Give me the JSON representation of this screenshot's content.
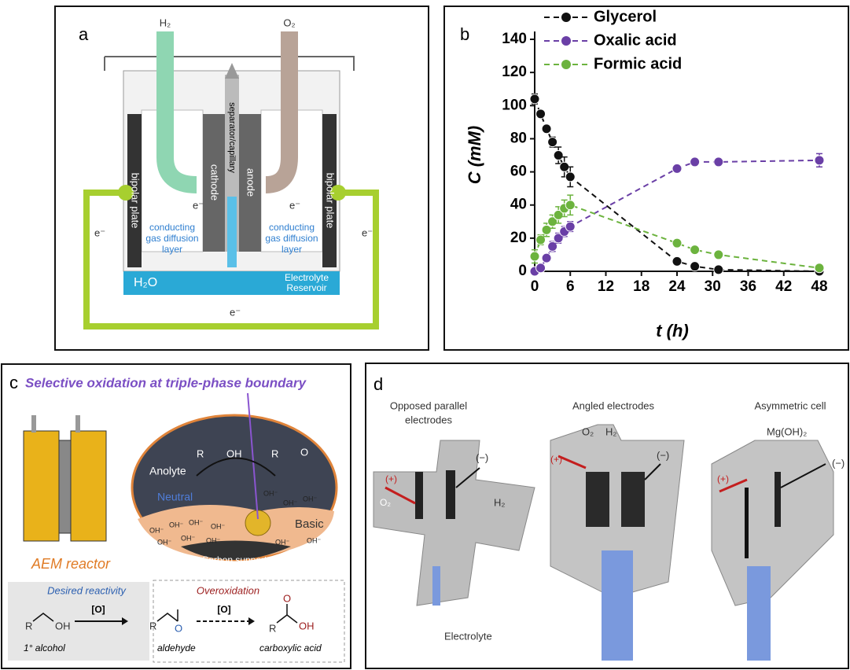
{
  "panels": {
    "a": {
      "label": "a",
      "h2": "H₂",
      "o2": "O₂",
      "bipolar_left": "bipolar plate",
      "bipolar_right": "bipolar plate",
      "cathode": "cathode",
      "separator": "separator/capillary",
      "anode": "anode",
      "electrons": [
        "e⁻",
        "e⁻",
        "e⁻",
        "e⁻",
        "e⁻"
      ],
      "gdl_left": [
        "conducting",
        "gas diffusion",
        "layer"
      ],
      "gdl_right": [
        "conducting",
        "gas diffusion",
        "layer"
      ],
      "water": "H₂O",
      "reservoir": [
        "Electrolyte",
        "Reservoir"
      ]
    },
    "c": {
      "label": "c",
      "title": "Selective oxidation at triple-phase boundary",
      "anolyte": "Anolyte",
      "neutral": "Neutral",
      "basic": "Basic",
      "support": "Carbon support",
      "reactor": "AEM reactor",
      "hydroxides": [
        "OH⁻",
        "OH⁻",
        "OH⁻",
        "OH⁻",
        "OH⁻",
        "OH⁻",
        "OH⁻",
        "OH⁻",
        "OH⁻",
        "OH⁻",
        "OH⁻",
        "OH⁻"
      ],
      "desired": "Desired reactivity",
      "overoxidation": "Overoxidation",
      "oxidant_1": "[O]",
      "oxidant_2": "[O]",
      "alcohol": "1° alcohol",
      "aldehyde": "aldehyde",
      "acid": "carboxylic acid",
      "r_groups": [
        "R",
        "R",
        "R",
        "R",
        "R"
      ],
      "oh_groups": [
        "OH",
        "OH",
        "OH"
      ],
      "o_groups": [
        "O",
        "O",
        "O"
      ]
    },
    "d": {
      "label": "d",
      "titles": [
        [
          "Opposed parallel",
          "electrodes"
        ],
        [
          "Angled electrodes"
        ],
        [
          "Asymmetric cell"
        ]
      ],
      "plus": [
        "(+)",
        "(+)",
        "(+)"
      ],
      "minus": [
        "(−)",
        "(−)",
        "(−)"
      ],
      "gases": [
        "O₂",
        "H₂",
        "O₂",
        "H₂",
        "Mg(OH)₂"
      ],
      "electrolyte": "Electrolyte"
    }
  },
  "chart_data": {
    "type": "line",
    "panel_label": "b",
    "x_label": "t (h)",
    "y_label": "C (mM)",
    "x": [
      0,
      1,
      2,
      3,
      4,
      5,
      6,
      24,
      27,
      31,
      48
    ],
    "xlim": [
      0,
      48
    ],
    "xticks": [
      0,
      6,
      12,
      18,
      24,
      30,
      36,
      42,
      48
    ],
    "ylim": [
      0,
      140
    ],
    "yticks": [
      0,
      20,
      40,
      60,
      80,
      100,
      120,
      140
    ],
    "legend": "upper left",
    "series": [
      {
        "name": "Glycerol",
        "color": "#111111",
        "values": [
          104,
          95,
          86,
          78,
          70,
          63,
          57,
          6,
          3,
          1,
          0
        ],
        "errors": [
          3,
          2,
          2,
          3,
          5,
          6,
          6,
          1,
          1,
          1,
          1
        ]
      },
      {
        "name": "Oxalic acid",
        "color": "#6a3fa6",
        "values": [
          0,
          2,
          8,
          15,
          20,
          24,
          27,
          62,
          66,
          66,
          67
        ],
        "errors": [
          1,
          1,
          2,
          3,
          3,
          3,
          3,
          2,
          1,
          2,
          4
        ]
      },
      {
        "name": "Formic acid",
        "color": "#6cb33e",
        "values": [
          9,
          19,
          25,
          30,
          34,
          38,
          40,
          17,
          13,
          10,
          2
        ],
        "errors": [
          4,
          3,
          4,
          4,
          5,
          5,
          6,
          2,
          1,
          1,
          1
        ]
      }
    ]
  }
}
